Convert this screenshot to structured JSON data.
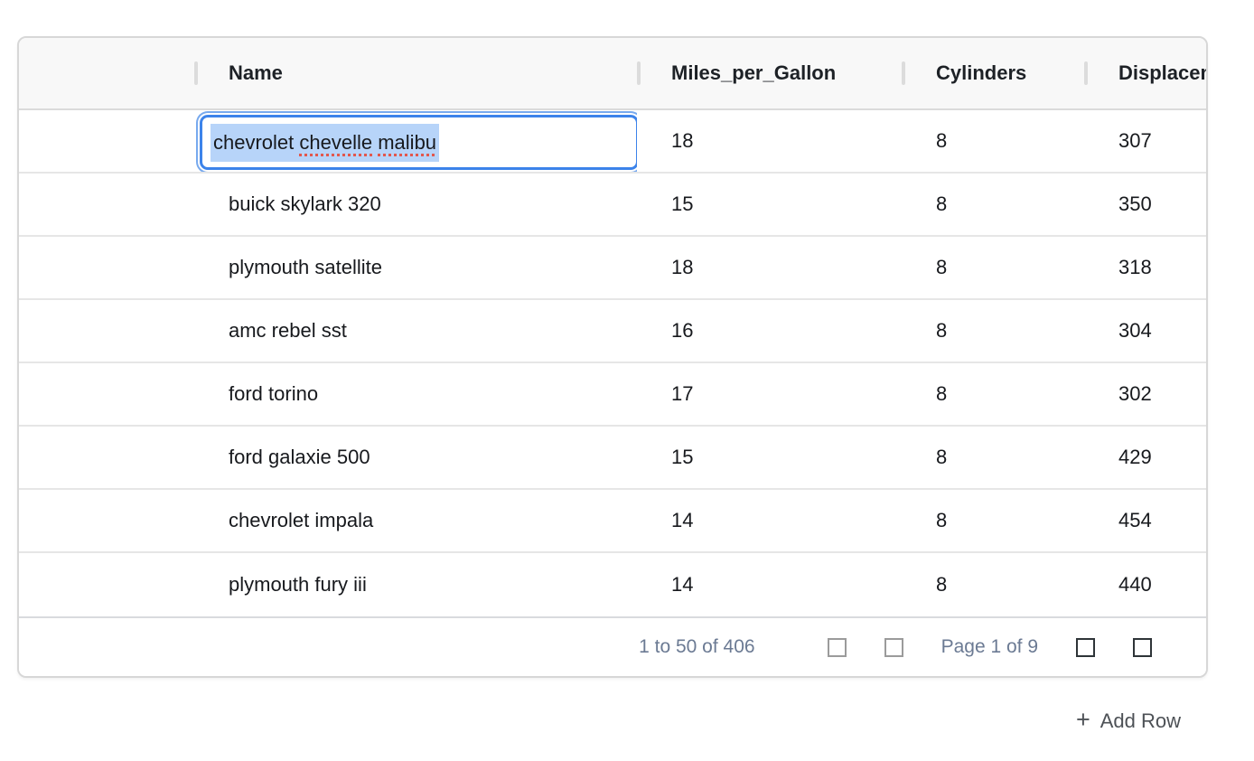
{
  "colors": {
    "accent_blue": "#3c83ea",
    "focus_ring": "#77a9ee",
    "selection_blue": "#b7d4f9",
    "spellcheck_red": "#e2574d",
    "header_bg": "#f8f8f8",
    "table_border": "#d7d7d7",
    "row_line": "#e6e6e6",
    "header_line": "#dbdbdb",
    "footer_line": "#d9dbde",
    "sep_bar": "#dcdcdc",
    "header_text": "#1d2126",
    "cell_text": "#17191d",
    "footer_text": "#6b7a93",
    "icon_disabled": "#9b9b9b",
    "icon_enabled": "#2e3438",
    "add_row_text": "#4d5156"
  },
  "table": {
    "columns": [
      {
        "label": ""
      },
      {
        "label": "Name"
      },
      {
        "label": "Miles_per_Gallon"
      },
      {
        "label": "Cylinders"
      },
      {
        "label": "Displacement"
      }
    ],
    "rows": [
      {
        "name": "chevrolet chevelle malibu",
        "mpg": 18,
        "cylinders": 8,
        "displacement": 307
      },
      {
        "name": "buick skylark 320",
        "mpg": 15,
        "cylinders": 8,
        "displacement": 350
      },
      {
        "name": "plymouth satellite",
        "mpg": 18,
        "cylinders": 8,
        "displacement": 318
      },
      {
        "name": "amc rebel sst",
        "mpg": 16,
        "cylinders": 8,
        "displacement": 304
      },
      {
        "name": "ford torino",
        "mpg": 17,
        "cylinders": 8,
        "displacement": 302
      },
      {
        "name": "ford galaxie 500",
        "mpg": 15,
        "cylinders": 8,
        "displacement": 429
      },
      {
        "name": "chevrolet impala",
        "mpg": 14,
        "cylinders": 8,
        "displacement": 454
      },
      {
        "name": "plymouth fury iii",
        "mpg": 14,
        "cylinders": 8,
        "displacement": 440
      }
    ]
  },
  "editor": {
    "value": "chevrolet chevelle malibu",
    "text_selected": true,
    "parts": [
      {
        "text": "chevrolet ",
        "misspelled": false
      },
      {
        "text": "chevelle",
        "misspelled": true
      },
      {
        "text": " ",
        "misspelled": false
      },
      {
        "text": "malibu",
        "misspelled": true
      }
    ]
  },
  "footer": {
    "range_summary": "1 to 50 of 406",
    "page_status": "Page 1 of 9",
    "buttons": [
      {
        "name": "first-page",
        "enabled": false
      },
      {
        "name": "previous-page",
        "enabled": false
      },
      {
        "name": "next-page",
        "enabled": true
      },
      {
        "name": "last-page",
        "enabled": true
      }
    ]
  },
  "add_row": {
    "plus_glyph": "+",
    "label": "Add Row"
  }
}
